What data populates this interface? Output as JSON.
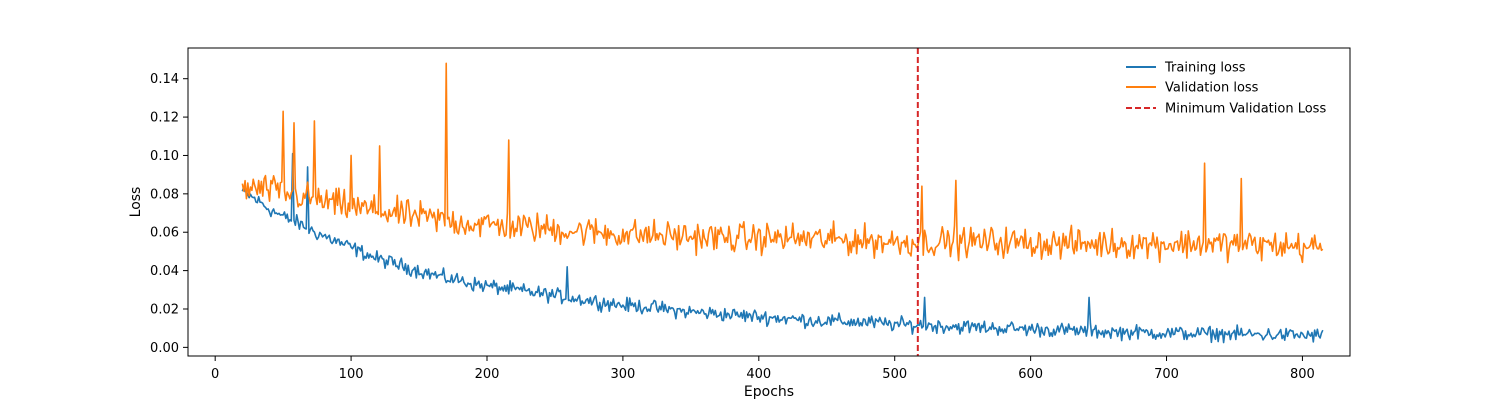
{
  "chart_data": {
    "type": "line",
    "xlabel": "Epochs",
    "ylabel": "Loss",
    "xlim": [
      -20,
      835
    ],
    "ylim": [
      -0.0045,
      0.156
    ],
    "x_ticks": [
      0,
      100,
      200,
      300,
      400,
      500,
      600,
      700,
      800
    ],
    "y_ticks": [
      0.0,
      0.02,
      0.04,
      0.06,
      0.08,
      0.1,
      0.12,
      0.14
    ],
    "y_tick_labels": [
      "0.00",
      "0.02",
      "0.04",
      "0.06",
      "0.08",
      "0.10",
      "0.12",
      "0.14"
    ],
    "grid": false,
    "legend": {
      "position": "top-right",
      "frame": false
    },
    "x_start": 20,
    "x_end": 815,
    "series": [
      {
        "name": "Training loss",
        "color": "#1f77b4",
        "x": [
          20,
          30,
          40,
          50,
          60,
          70,
          80,
          90,
          100,
          110,
          120,
          130,
          140,
          150,
          160,
          170,
          180,
          190,
          200,
          210,
          220,
          230,
          240,
          250,
          260,
          270,
          280,
          300,
          320,
          340,
          360,
          380,
          400,
          420,
          440,
          460,
          480,
          500,
          520,
          540,
          560,
          580,
          600,
          620,
          640,
          660,
          680,
          700,
          720,
          740,
          760,
          780,
          800,
          815
        ],
        "y": [
          0.081,
          0.077,
          0.072,
          0.068,
          0.065,
          0.061,
          0.058,
          0.055,
          0.052,
          0.049,
          0.046,
          0.044,
          0.042,
          0.04,
          0.038,
          0.036,
          0.035,
          0.033,
          0.032,
          0.031,
          0.03,
          0.029,
          0.028,
          0.027,
          0.026,
          0.025,
          0.024,
          0.022,
          0.021,
          0.019,
          0.018,
          0.017,
          0.016,
          0.015,
          0.014,
          0.0135,
          0.013,
          0.012,
          0.0115,
          0.011,
          0.0105,
          0.01,
          0.0095,
          0.009,
          0.0085,
          0.008,
          0.0078,
          0.0075,
          0.0072,
          0.007,
          0.0068,
          0.0065,
          0.0063,
          0.0062
        ],
        "noise": 0.0055,
        "spikes": [
          [
            57,
            0.101
          ],
          [
            68,
            0.094
          ],
          [
            259,
            0.042
          ],
          [
            522,
            0.026
          ],
          [
            643,
            0.026
          ]
        ]
      },
      {
        "name": "Validation loss",
        "color": "#ff7f0e",
        "x": [
          20,
          40,
          60,
          80,
          100,
          120,
          140,
          160,
          180,
          200,
          220,
          240,
          260,
          280,
          300,
          340,
          380,
          420,
          460,
          500,
          540,
          580,
          620,
          660,
          700,
          740,
          780,
          815
        ],
        "y": [
          0.083,
          0.082,
          0.079,
          0.076,
          0.073,
          0.071,
          0.069,
          0.067,
          0.065,
          0.064,
          0.063,
          0.062,
          0.061,
          0.06,
          0.059,
          0.058,
          0.057,
          0.057,
          0.056,
          0.055,
          0.055,
          0.055,
          0.054,
          0.054,
          0.054,
          0.054,
          0.053,
          0.052
        ],
        "noise": 0.0115,
        "spikes": [
          [
            50,
            0.123
          ],
          [
            58,
            0.117
          ],
          [
            73,
            0.118
          ],
          [
            100,
            0.1
          ],
          [
            121,
            0.105
          ],
          [
            170,
            0.148
          ],
          [
            216,
            0.108
          ],
          [
            520,
            0.084
          ],
          [
            545,
            0.087
          ],
          [
            728,
            0.096
          ],
          [
            755,
            0.088
          ]
        ]
      }
    ],
    "vline": {
      "name": "Minimum Validation Loss",
      "x": 517,
      "color": "#d62728"
    }
  }
}
